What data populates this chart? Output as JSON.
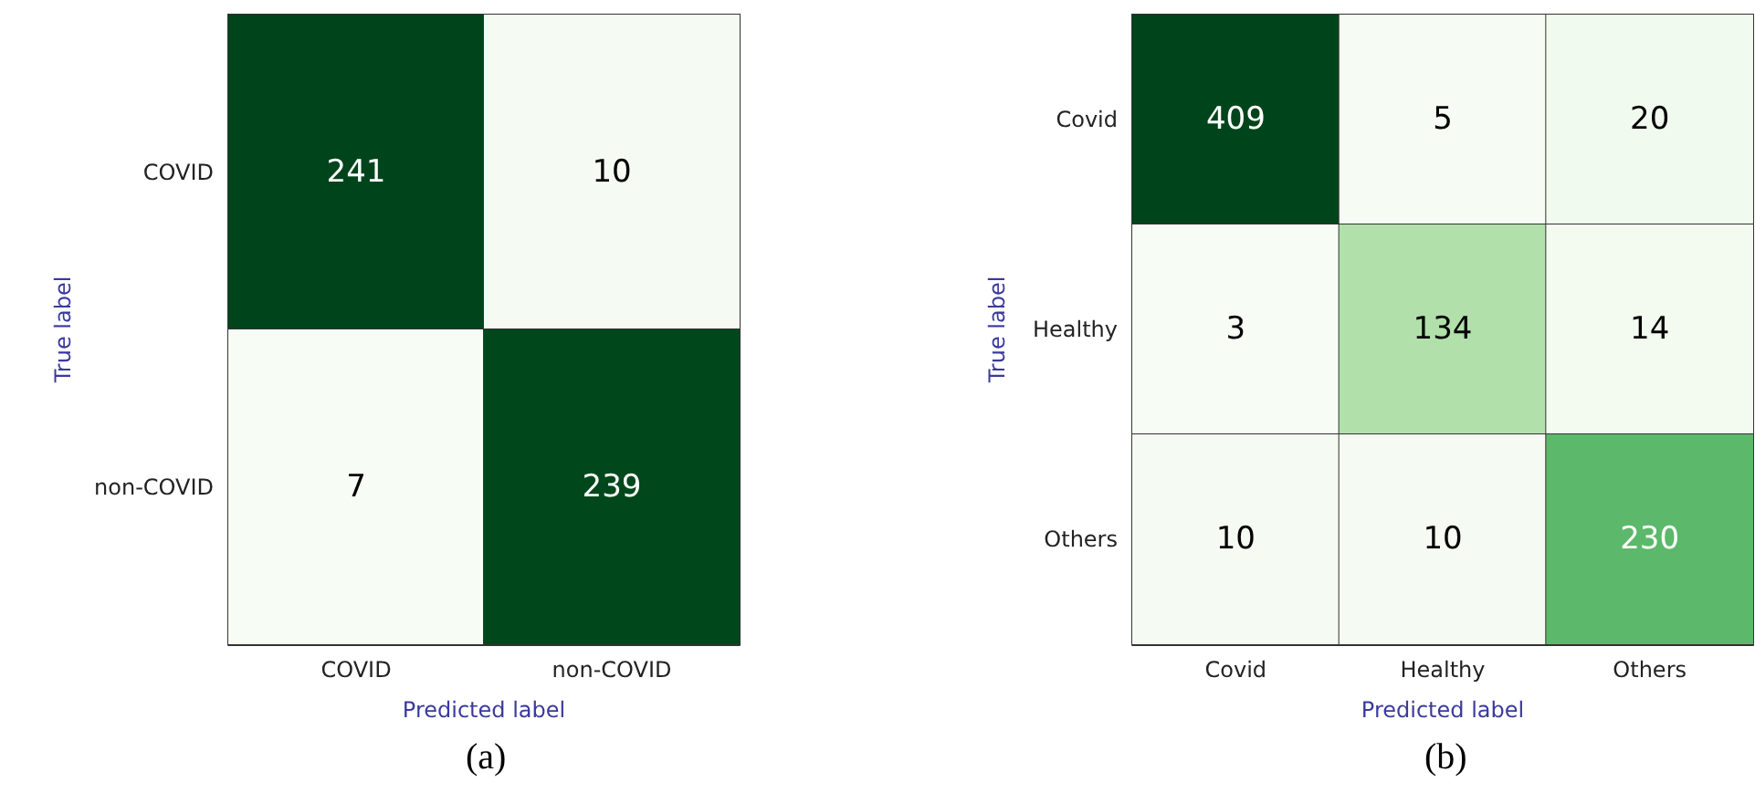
{
  "chart_data": [
    {
      "type": "heatmap",
      "xlabel": "Predicted label",
      "ylabel": "True label",
      "categories": [
        "COVID",
        "non-COVID"
      ],
      "y_categories": [
        "COVID",
        "non-COVID"
      ],
      "cells": [
        [
          241,
          10
        ],
        [
          7,
          239
        ]
      ],
      "data_labels": true,
      "annotations": [
        "(a)"
      ]
    },
    {
      "type": "heatmap",
      "xlabel": "Predicted label",
      "ylabel": "True label",
      "categories": [
        "Covid",
        "Healthy",
        "Others"
      ],
      "y_categories": [
        "Covid",
        "Healthy",
        "Others"
      ],
      "cells": [
        [
          409,
          5,
          20
        ],
        [
          3,
          134,
          14
        ],
        [
          10,
          10,
          230
        ]
      ],
      "data_labels": true,
      "annotations": [
        "(b)"
      ]
    }
  ]
}
